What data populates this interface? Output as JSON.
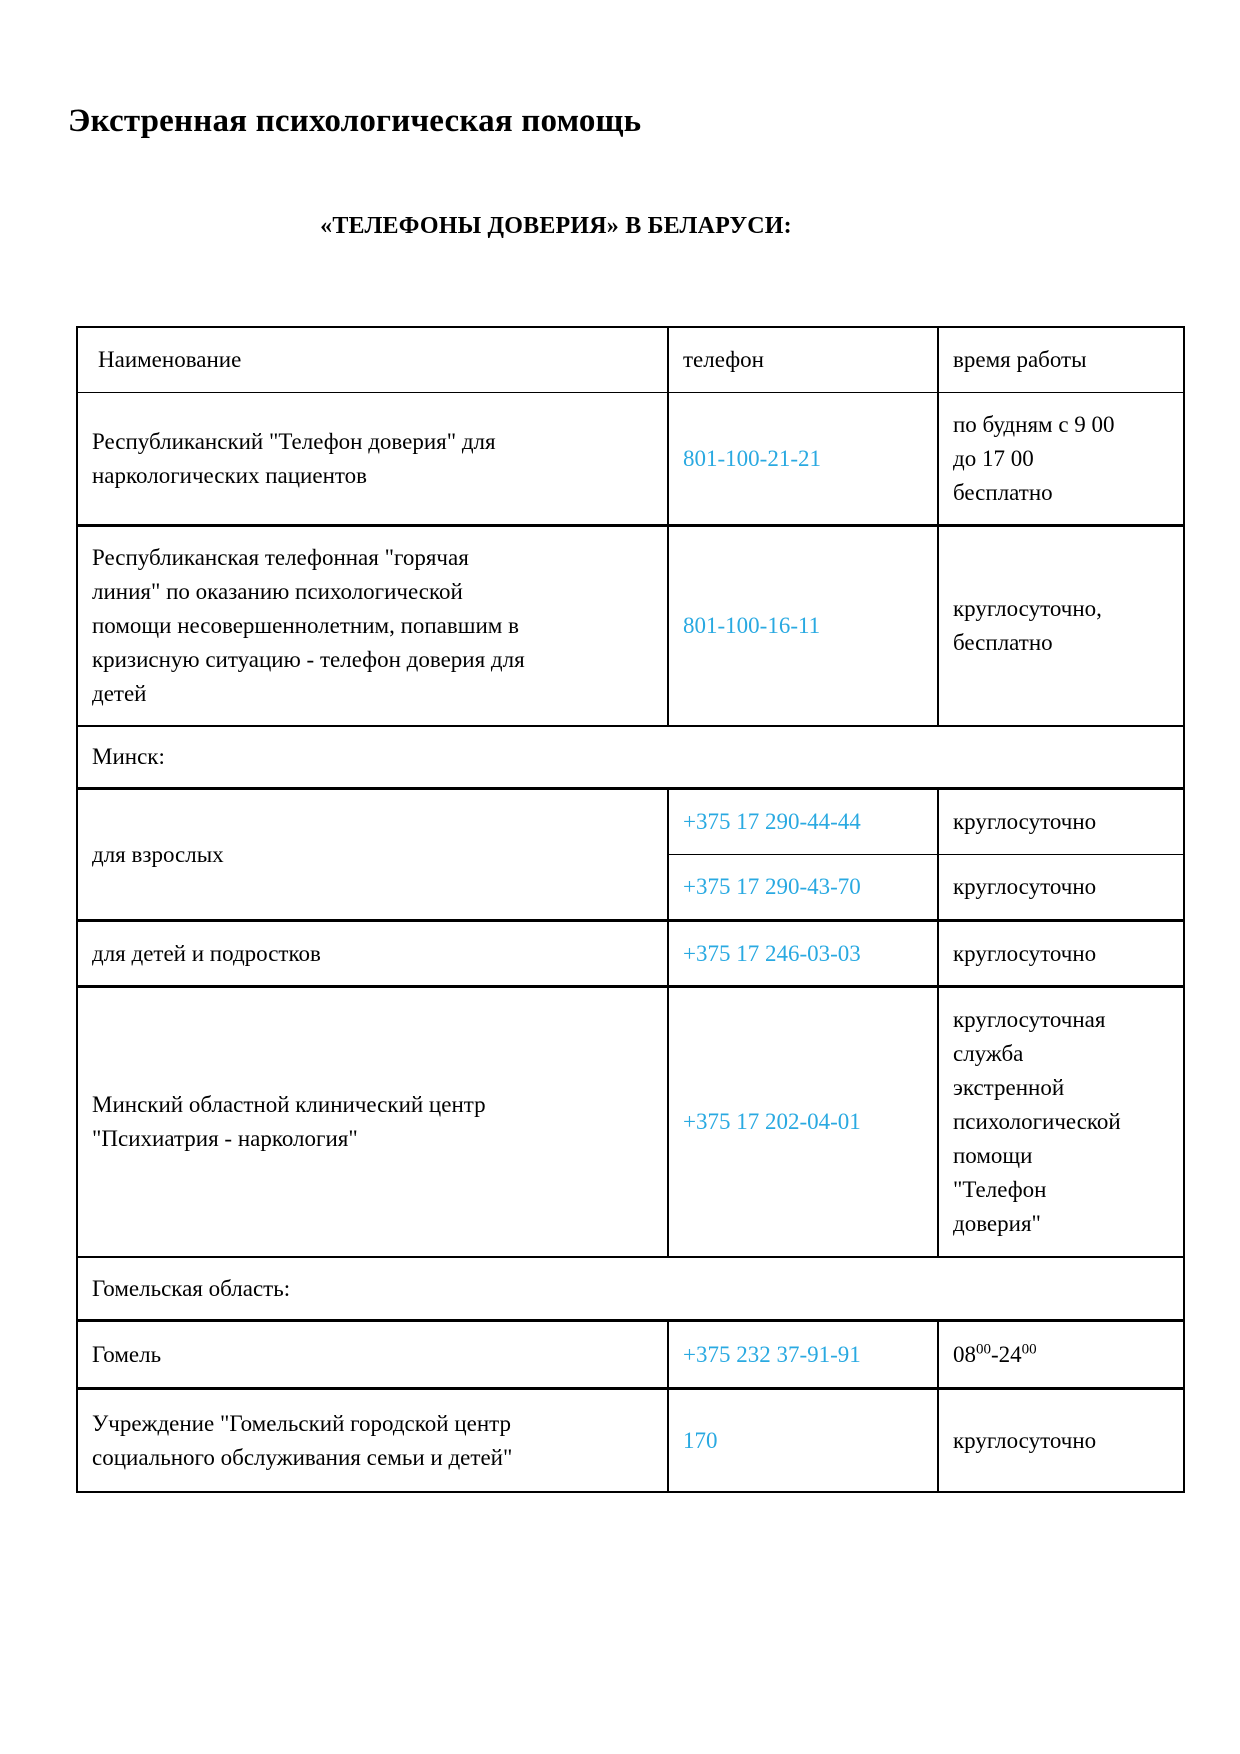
{
  "page": {
    "title": "Экстренная психологическая помощь",
    "subtitle": "«ТЕЛЕФОНЫ ДОВЕРИЯ» В БЕЛАРУСИ:"
  },
  "colors": {
    "phone_link": "#29a9e1"
  },
  "table": {
    "headers": [
      "Наименование",
      "телефон",
      "время работы"
    ],
    "rows": [
      {
        "name": "Республиканский \"Телефон доверия\" для\nнаркологических пациентов",
        "phone": "801-100-21-21",
        "hours": "по будням с 9 00\nдо 17 00\nбесплатно"
      },
      {
        "name": "Республиканская телефонная \"горячая\nлиния\" по оказанию психологической\nпомощи несовершеннолетним, попавшим в\nкризисную ситуацию - телефон доверия для\nдетей",
        "phone": "801-100-16-11",
        "hours": "круглосуточно,\nбесплатно"
      },
      {
        "section": "Минск:"
      },
      {
        "name": "для взрослых",
        "phones": [
          "+375 17 290-44-44",
          "+375 17 290-43-70"
        ],
        "hours_list": [
          "круглосуточно",
          "круглосуточно"
        ]
      },
      {
        "name": "для детей и подростков",
        "phone": "+375 17 246-03-03",
        "hours": "круглосуточно"
      },
      {
        "name": "Минский областной клинический центр\n\"Психиатрия - наркология\"",
        "phone": "+375 17 202-04-01",
        "hours": "круглосуточная\nслужба\nэкстренной\nпсихологической\nпомощи\n\"Телефон\nдоверия\""
      },
      {
        "section": "Гомельская область:"
      },
      {
        "name": "Гомель",
        "phone": "+375 232 37-91-91",
        "hours_parts": {
          "time1": "08",
          "sup1": "00",
          "time2": "-24",
          "sup2": "00"
        }
      },
      {
        "name": "Учреждение \"Гомельский городской центр\nсоциального обслуживания семьи и детей\"",
        "phone": "170",
        "hours": "круглосуточно"
      }
    ]
  }
}
